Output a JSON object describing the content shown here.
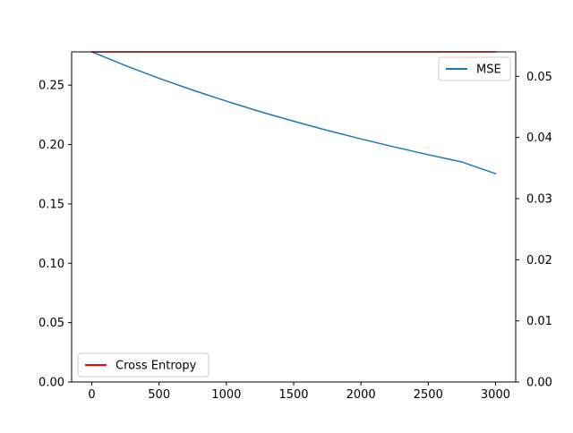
{
  "chart_data": {
    "type": "line",
    "title": "",
    "xlabel": "",
    "ylabel_left": "",
    "ylabel_right": "",
    "xlim": [
      -150,
      3150
    ],
    "ylim_left": [
      0.0,
      0.278
    ],
    "ylim_right": [
      0.0,
      0.054
    ],
    "x_ticks": [
      0,
      500,
      1000,
      1500,
      2000,
      2500,
      3000
    ],
    "x_tick_labels": [
      "0",
      "500",
      "1000",
      "1500",
      "2000",
      "2500",
      "3000"
    ],
    "y_left_ticks": [
      0.0,
      0.05,
      0.1,
      0.15,
      0.2,
      0.25
    ],
    "y_left_tick_labels": [
      "0.00",
      "0.05",
      "0.10",
      "0.15",
      "0.20",
      "0.25"
    ],
    "y_right_ticks": [
      0.0,
      0.01,
      0.02,
      0.03,
      0.04,
      0.05
    ],
    "y_right_tick_labels": [
      "0.00",
      "0.01",
      "0.02",
      "0.03",
      "0.04",
      "0.05"
    ],
    "grid": false,
    "series": [
      {
        "name": "MSE",
        "axis": "left",
        "color": "#1f77b4",
        "legend_position": "top-right",
        "x": [
          0,
          250,
          500,
          750,
          1000,
          1250,
          1500,
          1750,
          2000,
          2250,
          2500,
          2750,
          3000
        ],
        "y": [
          0.278,
          0.2665,
          0.2557,
          0.2458,
          0.2365,
          0.2277,
          0.2196,
          0.2119,
          0.2047,
          0.1979,
          0.1914,
          0.1853,
          0.1755
        ]
      },
      {
        "name": "Cross Entropy",
        "axis": "right",
        "color": "#ff0000",
        "legend_position": "bottom-left",
        "x": [
          0,
          3000
        ],
        "y": [
          0.054,
          0.054
        ]
      }
    ]
  }
}
